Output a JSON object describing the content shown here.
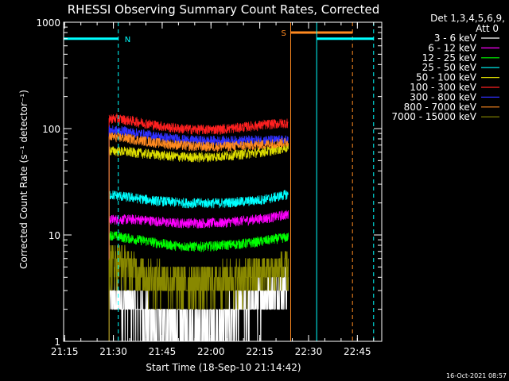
{
  "chart_data": {
    "type": "line",
    "title": "RHESSI Observing Summary Count Rates, Corrected",
    "xlabel": "Start Time (18-Sep-10 21:14:42)",
    "ylabel": "Corrected Count Rate (s⁻¹ detector⁻¹)",
    "y_scale": "log",
    "ylim": [
      1,
      1000
    ],
    "xlim": [
      "21:14:42",
      "22:52:30"
    ],
    "x_ticks": [
      "21:15",
      "21:30",
      "21:45",
      "22:00",
      "22:15",
      "22:30",
      "22:45"
    ],
    "y_ticks": [
      "1",
      "10",
      "100",
      "1000"
    ],
    "grid": false,
    "legend": {
      "placement": "right-outside-top",
      "header": [
        "Det 1,3,4,5,6,9,",
        "Att 0"
      ]
    },
    "data_gap": [
      "21:14:42",
      "21:28:40"
    ],
    "data_end": "22:23:50",
    "series": [
      {
        "name": "3 - 6 keV",
        "color": "#ffffff",
        "x": [
          "21:29",
          "21:33",
          "21:38",
          "21:43",
          "21:48",
          "21:53",
          "21:58",
          "22:03",
          "22:08",
          "22:13",
          "22:18",
          "22:23"
        ],
        "values": [
          2.6,
          2.5,
          2.0,
          1.6,
          1.5,
          1.4,
          1.3,
          1.5,
          2.0,
          2.4,
          2.9,
          3.4
        ]
      },
      {
        "name": "6 - 12 keV",
        "color": "#ff00ff",
        "x": [
          "21:29",
          "21:33",
          "21:38",
          "21:43",
          "21:48",
          "21:53",
          "21:58",
          "22:03",
          "22:08",
          "22:13",
          "22:18",
          "22:23"
        ],
        "values": [
          14,
          14,
          14,
          13.5,
          13,
          13,
          13,
          13,
          13.5,
          14,
          14.5,
          15.5
        ]
      },
      {
        "name": "12 - 25 keV",
        "color": "#00ff00",
        "x": [
          "21:29",
          "21:33",
          "21:38",
          "21:43",
          "21:48",
          "21:53",
          "21:58",
          "22:03",
          "22:08",
          "22:13",
          "22:18",
          "22:23"
        ],
        "values": [
          10,
          9.5,
          9,
          8.5,
          8,
          7.8,
          7.8,
          8,
          8.2,
          8.5,
          9,
          9.5
        ]
      },
      {
        "name": "25 - 50 keV",
        "color": "#00ffff",
        "x": [
          "21:29",
          "21:33",
          "21:38",
          "21:43",
          "21:48",
          "21:53",
          "21:58",
          "22:03",
          "22:08",
          "22:13",
          "22:18",
          "22:23"
        ],
        "values": [
          24,
          23,
          22,
          21,
          20.5,
          20,
          20,
          20,
          20.5,
          21,
          22,
          24
        ]
      },
      {
        "name": "50 - 100 keV",
        "color": "#dddd00",
        "x": [
          "21:29",
          "21:33",
          "21:38",
          "21:43",
          "21:48",
          "21:53",
          "21:58",
          "22:03",
          "22:08",
          "22:13",
          "22:18",
          "22:23"
        ],
        "values": [
          62,
          61,
          59,
          57,
          55,
          54,
          54,
          55,
          57,
          59,
          62,
          66
        ]
      },
      {
        "name": "100 - 300 keV",
        "color": "#ff2020",
        "x": [
          "21:29",
          "21:33",
          "21:38",
          "21:43",
          "21:48",
          "21:53",
          "21:58",
          "22:03",
          "22:08",
          "22:13",
          "22:18",
          "22:23"
        ],
        "values": [
          125,
          122,
          115,
          108,
          102,
          99,
          98,
          99,
          102,
          106,
          110,
          113
        ]
      },
      {
        "name": "300 - 800 keV",
        "color": "#3030ff",
        "x": [
          "21:29",
          "21:33",
          "21:38",
          "21:43",
          "21:48",
          "21:53",
          "21:58",
          "22:03",
          "22:08",
          "22:13",
          "22:18",
          "22:23"
        ],
        "values": [
          97,
          95,
          90,
          85,
          81,
          78,
          77,
          77,
          77,
          78,
          78,
          78
        ]
      },
      {
        "name": "800 - 7000 keV",
        "color": "#ff8a20",
        "x": [
          "21:29",
          "21:33",
          "21:38",
          "21:43",
          "21:48",
          "21:53",
          "21:58",
          "22:03",
          "22:08",
          "22:13",
          "22:18",
          "22:23"
        ],
        "values": [
          84,
          82,
          78,
          74,
          71,
          69,
          68,
          68,
          69,
          70,
          72,
          74
        ]
      },
      {
        "name": "7000 - 15000 keV",
        "color": "#888800",
        "x": [
          "21:29",
          "21:33",
          "21:38",
          "21:43",
          "21:48",
          "21:53",
          "21:58",
          "22:03",
          "22:08",
          "22:13",
          "22:18",
          "22:23"
        ],
        "values": [
          5.8,
          5.5,
          4.5,
          4.0,
          3.7,
          3.6,
          3.6,
          3.8,
          4.0,
          4.3,
          4.6,
          4.8
        ]
      }
    ],
    "flags": [
      {
        "label": "N",
        "color": "#00ffff",
        "y": 700,
        "start": "21:14:42",
        "end": "21:31:30",
        "lines": [
          {
            "t": "21:14:42",
            "style": "solid"
          },
          {
            "t": "21:31:30",
            "style": "dashed"
          }
        ]
      },
      {
        "label": "S",
        "color": "#ff8a20",
        "y": 800,
        "start": "22:24:30",
        "end": "22:43:30",
        "lines": [
          {
            "t": "22:24:30",
            "style": "solid"
          },
          {
            "t": "22:43:30",
            "style": "dashed"
          }
        ]
      },
      {
        "label": "",
        "color": "#00ffff",
        "y": 700,
        "start": "22:32:30",
        "end": "22:50:00",
        "lines": [
          {
            "t": "22:32:30",
            "style": "solid"
          },
          {
            "t": "22:50:00",
            "style": "dashed"
          }
        ]
      }
    ]
  },
  "footer": {
    "timestamp": "16-Oct-2021 08:57"
  }
}
